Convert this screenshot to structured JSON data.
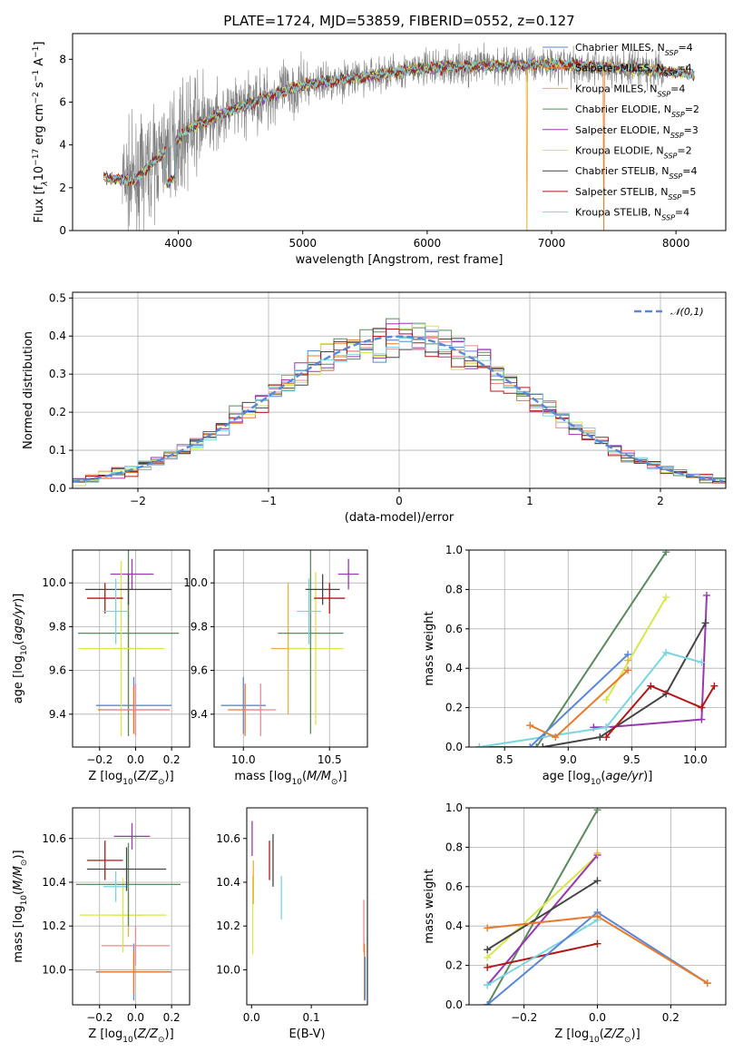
{
  "figure_title": "PLATE=1724, MJD=53859, FIBERID=0552, z=0.127",
  "colors": {
    "Chabrier MILES": "#5b87d8",
    "Salpeter MILES": "#e87b2b",
    "Kroupa MILES": "#e8b23a",
    "Chabrier ELODIE": "#5b8a5f",
    "Salpeter ELODIE": "#9b36b3",
    "Kroupa ELODIE": "#d7e74c",
    "Chabrier STELIB": "#444444",
    "Salpeter STELIB": "#b21818",
    "Kroupa STELIB": "#79d6e0",
    "data": "#808080",
    "Salpeter MILES hist": "#ec8a90",
    "normal": "#5b87d8",
    "grid": "#b0b0b0"
  },
  "chart_data": [
    {
      "id": "spectrum",
      "type": "line",
      "title": "PLATE=1724, MJD=53859, FIBERID=0552, z=0.127",
      "xlabel": "wavelength [Angstrom, rest frame]",
      "ylabel_parts": [
        "Flux [f",
        "λ",
        "10",
        "−17",
        " erg cm",
        "−2",
        " s",
        "−1",
        " A",
        "−1",
        "]"
      ],
      "xlim": [
        3150,
        8400
      ],
      "ylim": [
        0,
        9.2
      ],
      "xticks": [
        4000,
        5000,
        6000,
        7000,
        8000
      ],
      "yticks": [
        0,
        2,
        4,
        6,
        8
      ],
      "grid": false,
      "legend": {
        "placement": "top-right",
        "entries": [
          {
            "base": "Chabrier MILES, N",
            "sub": "SSP",
            "val": "=4",
            "series": "Chabrier MILES"
          },
          {
            "base": "Salpeter MILES, N",
            "sub": "SSP",
            "val": "=4",
            "series": "Salpeter MILES"
          },
          {
            "base": "Kroupa MILES, N",
            "sub": "SSP",
            "val": "=4",
            "series": "Kroupa MILES"
          },
          {
            "base": "Chabrier ELODIE, N",
            "sub": "SSP",
            "val": "=2",
            "series": "Chabrier ELODIE"
          },
          {
            "base": "Salpeter ELODIE, N",
            "sub": "SSP",
            "val": "=3",
            "series": "Salpeter ELODIE"
          },
          {
            "base": "Kroupa ELODIE, N",
            "sub": "SSP",
            "val": "=2",
            "series": "Kroupa ELODIE"
          },
          {
            "base": "Chabrier STELIB, N",
            "sub": "SSP",
            "val": "=4",
            "series": "Chabrier STELIB"
          },
          {
            "base": "Salpeter STELIB, N",
            "sub": "SSP",
            "val": "=5",
            "series": "Salpeter STELIB"
          },
          {
            "base": "Kroupa STELIB, N",
            "sub": "SSP",
            "val": "=4",
            "series": "Kroupa STELIB"
          }
        ]
      },
      "continuum": [
        [
          3400,
          2.5
        ],
        [
          3650,
          2.3
        ],
        [
          3800,
          3.2
        ],
        [
          3950,
          4.0
        ],
        [
          4100,
          4.8
        ],
        [
          4300,
          5.3
        ],
        [
          4600,
          6.0
        ],
        [
          5000,
          6.8
        ],
        [
          5500,
          7.2
        ],
        [
          6000,
          7.6
        ],
        [
          6500,
          7.7
        ],
        [
          7000,
          7.8
        ],
        [
          7500,
          7.6
        ],
        [
          8000,
          7.4
        ],
        [
          8150,
          7.3
        ]
      ],
      "model_end": 8150,
      "data_end": 7900,
      "data_start": 3550,
      "model_dropouts": [
        {
          "series": "Kroupa MILES",
          "x": 6800
        },
        {
          "series": "Salpeter MILES",
          "x": 7420
        }
      ]
    },
    {
      "id": "residuals",
      "type": "histogram",
      "xlabel": "(data-model)/error",
      "ylabel": "Normed distribution",
      "xlim": [
        -2.5,
        2.5
      ],
      "ylim": [
        0,
        0.515
      ],
      "xticks": [
        -2,
        -1,
        0,
        1,
        2
      ],
      "yticks": [
        0.0,
        0.1,
        0.2,
        0.3,
        0.4,
        0.5
      ],
      "grid": true,
      "bin_width": 0.1,
      "legend": {
        "placement": "top-right",
        "label": "𝒩(0,1)"
      }
    },
    {
      "id": "age-vs-Z",
      "type": "scatter",
      "xlabel": "Z [log10(Z/Z⊙)]",
      "ylabel": "age  [log10(age/yr)]",
      "xlim": [
        -0.35,
        0.3
      ],
      "ylim": [
        9.25,
        10.15
      ],
      "xticks": [
        -0.2,
        0.0,
        0.2
      ],
      "yticks": [
        9.4,
        9.6,
        9.8,
        10.0
      ],
      "grid": true,
      "points": [
        {
          "series": "Chabrier MILES",
          "x": -0.01,
          "y": 9.44,
          "xerr": 0.21,
          "yerr": 0.13
        },
        {
          "series": "Salpeter MILES",
          "x": -0.01,
          "y": 9.42,
          "xerr": 0.2,
          "yerr": 0.11
        },
        {
          "series": "Kroupa MILES",
          "x": -0.04,
          "y": 9.7,
          "xerr": 0.08,
          "yerr": 0.3
        },
        {
          "series": "Chabrier ELODIE",
          "x": -0.04,
          "y": 9.77,
          "xerr": 0.28,
          "yerr": 0.47
        },
        {
          "series": "Salpeter ELODIE",
          "x": -0.02,
          "y": 10.04,
          "xerr": 0.12,
          "yerr": 0.07
        },
        {
          "series": "Kroupa ELODIE",
          "x": -0.08,
          "y": 9.7,
          "xerr": 0.24,
          "yerr": 0.4
        },
        {
          "series": "Chabrier STELIB",
          "x": -0.04,
          "y": 9.97,
          "xerr": 0.24,
          "yerr": 0.07
        },
        {
          "series": "Salpeter STELIB",
          "x": -0.17,
          "y": 9.93,
          "xerr": 0.1,
          "yerr": 0.07
        },
        {
          "series": "Kroupa STELIB",
          "x": -0.11,
          "y": 9.87,
          "xerr": 0.07,
          "yerr": 0.15
        },
        {
          "series": "Salpeter MILES hist",
          "x": 0.0,
          "y": 9.42,
          "xerr": 0.18,
          "yerr": 0.12
        }
      ]
    },
    {
      "id": "age-vs-mass",
      "type": "scatter",
      "xlabel": "mass [log10(M/M⊙)]",
      "ylabel": "",
      "xlim": [
        9.83,
        10.72
      ],
      "ylim": [
        9.25,
        10.15
      ],
      "xticks": [
        10.0,
        10.5
      ],
      "yticks": [
        9.4,
        9.6,
        9.8,
        10.0
      ],
      "grid": true,
      "points": [
        {
          "series": "Chabrier MILES",
          "x": 10.0,
          "y": 9.44,
          "xerr": 0.13,
          "yerr": 0.13
        },
        {
          "series": "Salpeter MILES",
          "x": 10.01,
          "y": 9.42,
          "xerr": 0.1,
          "yerr": 0.12
        },
        {
          "series": "Salpeter MILES hist",
          "x": 10.1,
          "y": 9.42,
          "xerr": 0.09,
          "yerr": 0.12
        },
        {
          "series": "Kroupa MILES",
          "x": 10.26,
          "y": 9.7,
          "xerr": 0.1,
          "yerr": 0.3
        },
        {
          "series": "Kroupa ELODIE",
          "x": 10.42,
          "y": 9.7,
          "xerr": 0.16,
          "yerr": 0.35
        },
        {
          "series": "Chabrier ELODIE",
          "x": 10.39,
          "y": 9.77,
          "xerr": 0.19,
          "yerr": 0.46
        },
        {
          "series": "Kroupa STELIB",
          "x": 10.38,
          "y": 9.87,
          "xerr": 0.07,
          "yerr": 0.15
        },
        {
          "series": "Chabrier STELIB",
          "x": 10.46,
          "y": 9.97,
          "xerr": 0.1,
          "yerr": 0.07
        },
        {
          "series": "Salpeter STELIB",
          "x": 10.5,
          "y": 9.93,
          "xerr": 0.09,
          "yerr": 0.07
        },
        {
          "series": "Salpeter ELODIE",
          "x": 10.61,
          "y": 10.04,
          "xerr": 0.06,
          "yerr": 0.07
        }
      ]
    },
    {
      "id": "weight-vs-age",
      "type": "line",
      "xlabel": "age  [log10(age/yr)]",
      "ylabel": "mass weight",
      "xlim": [
        8.22,
        10.24
      ],
      "ylim": [
        0,
        1.0
      ],
      "xticks": [
        8.5,
        9.0,
        9.5,
        10.0
      ],
      "yticks": [
        0.0,
        0.2,
        0.4,
        0.6,
        0.8,
        1.0
      ],
      "grid": true,
      "series": [
        {
          "name": "Chabrier ELODIE",
          "points": [
            [
              8.3,
              0.0
            ],
            [
              8.75,
              0.0
            ],
            [
              9.77,
              0.99
            ]
          ]
        },
        {
          "name": "Kroupa ELODIE",
          "points": [
            [
              9.3,
              0.24
            ],
            [
              9.77,
              0.76
            ]
          ]
        },
        {
          "name": "Salpeter ELODIE",
          "points": [
            [
              9.2,
              0.1
            ],
            [
              9.3,
              0.1
            ],
            [
              10.05,
              0.14
            ],
            [
              10.09,
              0.77
            ]
          ]
        },
        {
          "name": "Chabrier STELIB",
          "points": [
            [
              8.8,
              0.0
            ],
            [
              9.25,
              0.05
            ],
            [
              9.77,
              0.27
            ],
            [
              10.08,
              0.63
            ]
          ]
        },
        {
          "name": "Salpeter STELIB",
          "points": [
            [
              9.3,
              0.05
            ],
            [
              9.65,
              0.31
            ],
            [
              10.05,
              0.2
            ],
            [
              10.15,
              0.31
            ]
          ]
        },
        {
          "name": "Kroupa STELIB",
          "points": [
            [
              8.3,
              0.0
            ],
            [
              9.3,
              0.1
            ],
            [
              9.77,
              0.48
            ],
            [
              10.05,
              0.43
            ]
          ]
        },
        {
          "name": "Chabrier MILES",
          "points": [
            [
              8.7,
              0.0
            ],
            [
              9.47,
              0.47
            ]
          ]
        },
        {
          "name": "Salpeter MILES",
          "points": [
            [
              8.7,
              0.11
            ],
            [
              8.9,
              0.05
            ],
            [
              9.47,
              0.39
            ]
          ]
        },
        {
          "name": "Kroupa MILES",
          "points": [
            [
              9.47,
              0.44
            ]
          ]
        }
      ]
    },
    {
      "id": "mass-vs-Z",
      "type": "scatter",
      "xlabel": "Z [log10(Z/Z⊙)]",
      "ylabel": "mass [log10(M/M⊙)]",
      "xlim": [
        -0.35,
        0.3
      ],
      "ylim": [
        9.84,
        10.74
      ],
      "xticks": [
        -0.2,
        0.0,
        0.2
      ],
      "yticks": [
        10.0,
        10.2,
        10.4,
        10.6
      ],
      "grid": true,
      "points": [
        {
          "series": "Chabrier MILES",
          "x": -0.01,
          "y": 9.99,
          "xerr": 0.21,
          "yerr": 0.13
        },
        {
          "series": "Salpeter MILES",
          "x": -0.01,
          "y": 9.99,
          "xerr": 0.2,
          "yerr": 0.1
        },
        {
          "series": "Salpeter MILES hist",
          "x": 0.0,
          "y": 10.11,
          "xerr": 0.19,
          "yerr": 0.09
        },
        {
          "series": "Kroupa MILES",
          "x": -0.04,
          "y": 10.25,
          "xerr": 0.08,
          "yerr": 0.1
        },
        {
          "series": "Kroupa ELODIE",
          "x": -0.07,
          "y": 10.25,
          "xerr": 0.24,
          "yerr": 0.17
        },
        {
          "series": "Chabrier ELODIE",
          "x": -0.04,
          "y": 10.39,
          "xerr": 0.29,
          "yerr": 0.19
        },
        {
          "series": "Kroupa STELIB",
          "x": -0.11,
          "y": 10.38,
          "xerr": 0.07,
          "yerr": 0.07
        },
        {
          "series": "Chabrier STELIB",
          "x": -0.05,
          "y": 10.46,
          "xerr": 0.22,
          "yerr": 0.1
        },
        {
          "series": "Salpeter STELIB",
          "x": -0.17,
          "y": 10.5,
          "xerr": 0.1,
          "yerr": 0.09
        },
        {
          "series": "Salpeter ELODIE",
          "x": -0.02,
          "y": 10.61,
          "xerr": 0.1,
          "yerr": 0.06
        }
      ]
    },
    {
      "id": "mass-vs-ebv",
      "type": "scatter",
      "xlabel": "E(B-V)",
      "ylabel": "",
      "xlim": [
        -0.008,
        0.194
      ],
      "ylim": [
        9.84,
        10.74
      ],
      "xticks": [
        0.0,
        0.1
      ],
      "yticks": [
        10.0,
        10.2,
        10.4,
        10.6
      ],
      "grid": false,
      "points": [
        {
          "series": "Salpeter ELODIE",
          "x": 0.001,
          "y": 10.6,
          "xerr": 0.0,
          "yerr": 0.08
        },
        {
          "series": "Kroupa ELODIE",
          "x": 0.002,
          "y": 10.25,
          "xerr": 0.0,
          "yerr": 0.18
        },
        {
          "series": "Kroupa MILES",
          "x": 0.003,
          "y": 10.4,
          "xerr": 0.0,
          "yerr": 0.1
        },
        {
          "series": "Salpeter STELIB",
          "x": 0.03,
          "y": 10.5,
          "xerr": 0.0,
          "yerr": 0.09
        },
        {
          "series": "Chabrier STELIB",
          "x": 0.036,
          "y": 10.5,
          "xerr": 0.0,
          "yerr": 0.12
        },
        {
          "series": "Kroupa STELIB",
          "x": 0.05,
          "y": 10.33,
          "xerr": 0.0,
          "yerr": 0.1
        },
        {
          "series": "Salpeter MILES hist",
          "x": 0.188,
          "y": 10.2,
          "xerr": 0.0,
          "yerr": 0.12
        },
        {
          "series": "Salpeter MILES",
          "x": 0.189,
          "y": 9.99,
          "xerr": 0.0,
          "yerr": 0.13
        },
        {
          "series": "Chabrier MILES",
          "x": 0.19,
          "y": 9.96,
          "xerr": 0.0,
          "yerr": 0.1
        }
      ]
    },
    {
      "id": "weight-vs-Z",
      "type": "line",
      "xlabel": "Z [log10(Z/Z⊙)]",
      "ylabel": "mass weight",
      "xlim": [
        -0.35,
        0.35
      ],
      "ylim": [
        0,
        1.0
      ],
      "xticks": [
        -0.2,
        0.0,
        0.2
      ],
      "yticks": [
        0.0,
        0.2,
        0.4,
        0.6,
        0.8,
        1.0
      ],
      "grid": true,
      "series": [
        {
          "name": "Chabrier ELODIE",
          "points": [
            [
              -0.3,
              0.0
            ],
            [
              0.0,
              0.99
            ]
          ]
        },
        {
          "name": "Kroupa ELODIE",
          "points": [
            [
              -0.3,
              0.24
            ],
            [
              0.0,
              0.76
            ]
          ]
        },
        {
          "name": "Salpeter ELODIE",
          "points": [
            [
              -0.3,
              0.1
            ],
            [
              0.0,
              0.76
            ]
          ]
        },
        {
          "name": "Chabrier STELIB",
          "points": [
            [
              -0.3,
              0.28
            ],
            [
              0.0,
              0.63
            ]
          ]
        },
        {
          "name": "Salpeter STELIB",
          "points": [
            [
              -0.3,
              0.19
            ],
            [
              0.0,
              0.31
            ]
          ]
        },
        {
          "name": "Kroupa STELIB",
          "points": [
            [
              -0.3,
              0.1
            ],
            [
              0.0,
              0.43
            ]
          ]
        },
        {
          "name": "Chabrier MILES",
          "points": [
            [
              -0.3,
              0.0
            ],
            [
              0.0,
              0.47
            ],
            [
              0.3,
              0.11
            ]
          ]
        },
        {
          "name": "Salpeter MILES",
          "points": [
            [
              -0.3,
              0.39
            ],
            [
              0.0,
              0.45
            ],
            [
              0.3,
              0.11
            ]
          ]
        },
        {
          "name": "Kroupa MILES",
          "points": [
            [
              0.0,
              0.77
            ]
          ]
        }
      ]
    }
  ]
}
